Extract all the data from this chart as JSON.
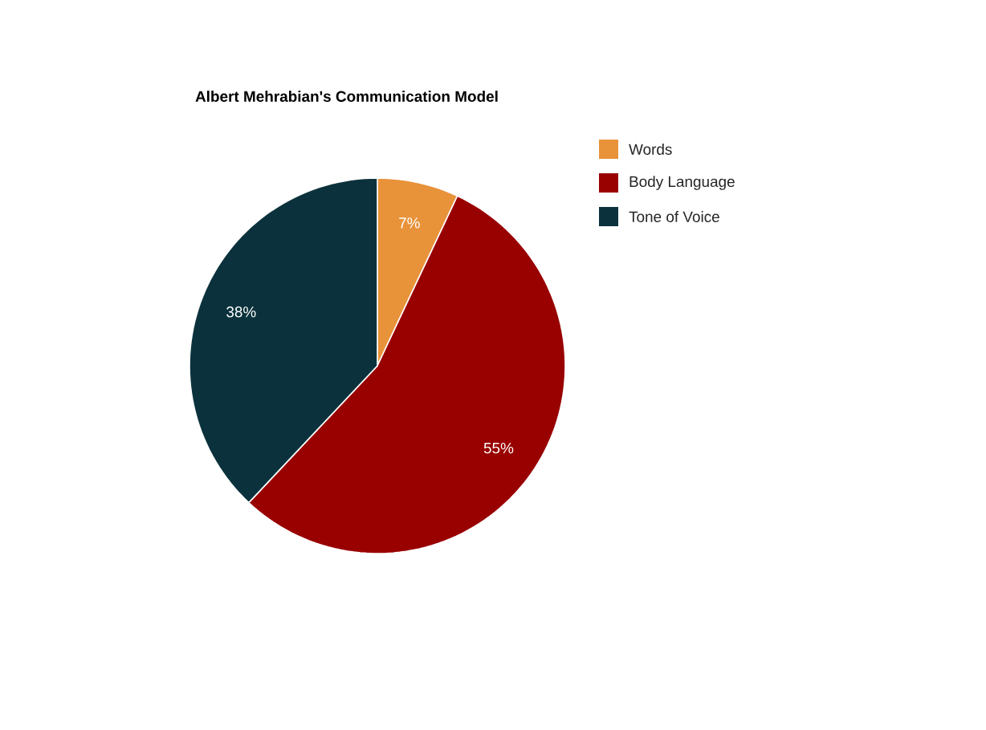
{
  "chart_data": {
    "type": "pie",
    "title": "Albert Mehrabian's Communication Model",
    "categories": [
      "Words",
      "Body Language",
      "Tone of Voice"
    ],
    "values": [
      7,
      55,
      38
    ],
    "value_labels": [
      "7%",
      "55%",
      "38%"
    ],
    "colors": [
      "#e8923a",
      "#990000",
      "#0b323c"
    ],
    "legend": "right"
  }
}
